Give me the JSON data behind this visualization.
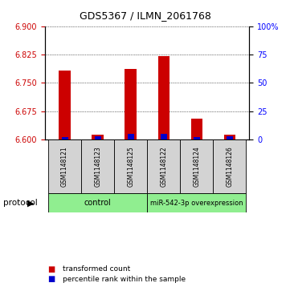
{
  "title": "GDS5367 / ILMN_2061768",
  "samples": [
    "GSM1148121",
    "GSM1148123",
    "GSM1148125",
    "GSM1148122",
    "GSM1148124",
    "GSM1148126"
  ],
  "red_values": [
    6.782,
    6.614,
    6.786,
    6.82,
    6.655,
    6.614
  ],
  "blue_values": [
    6.606,
    6.608,
    6.615,
    6.615,
    6.607,
    6.608
  ],
  "baseline": 6.6,
  "ylim_left": [
    6.6,
    6.9
  ],
  "ylim_right": [
    0,
    100
  ],
  "left_ticks": [
    6.6,
    6.675,
    6.75,
    6.825,
    6.9
  ],
  "right_ticks": [
    0,
    25,
    50,
    75,
    100
  ],
  "right_tick_labels": [
    "0",
    "25",
    "50",
    "75",
    "100%"
  ],
  "bar_width": 0.35,
  "red_color": "#CC0000",
  "blue_color": "#0000CC",
  "background_color": "#ffffff",
  "label_box_color": "#d3d3d3",
  "green_color": "#90EE90",
  "legend_red": "transformed count",
  "legend_blue": "percentile rank within the sample",
  "protocol_label": "protocol",
  "ctrl_label": "control",
  "mir_label": "miR-542-3p overexpression"
}
